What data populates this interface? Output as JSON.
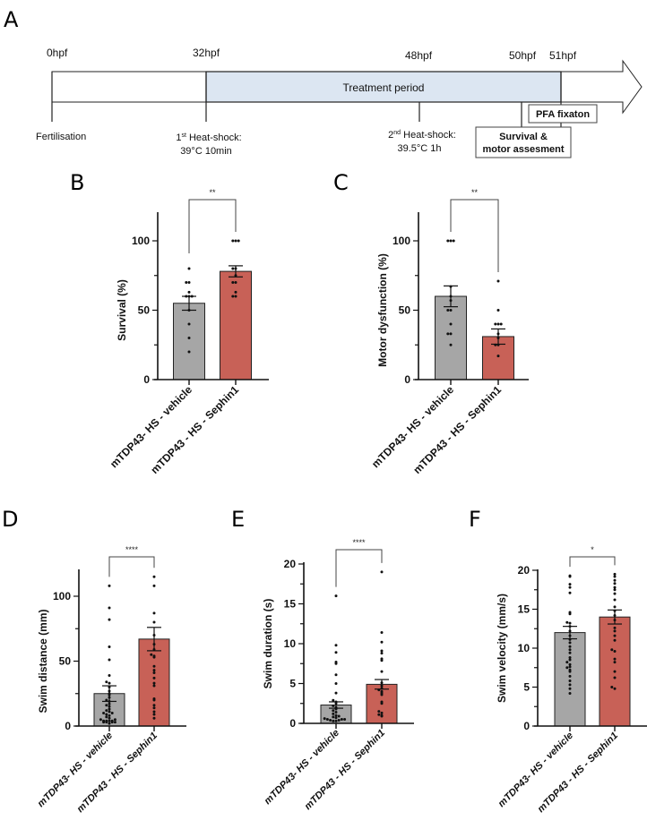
{
  "colors": {
    "vehicle": "#a6a6a6",
    "sephin": "#c86157",
    "treatment": "#dce6f2",
    "axis": "#111111"
  },
  "timeline": {
    "letter": "A",
    "times": [
      "0hpf",
      "32hpf",
      "48hpf",
      "50hpf",
      "51hpf"
    ],
    "treatment_label": "Treatment period",
    "fertilisation": "Fertilisation",
    "hs1_pre": "1",
    "hs1_sup": "st",
    "hs1_post": " Heat-shock:",
    "hs1_cond": "39°C 10min",
    "hs2_pre": "2",
    "hs2_sup": "nd",
    "hs2_post": " Heat-shock:",
    "hs2_cond": "39.5°C 1h",
    "pfa": "PFA fixaton",
    "survival_line1": "Survival &",
    "survival_line2": "motor assesment"
  },
  "chart_data": [
    {
      "panel": "B",
      "type": "bar",
      "ylabel": "Survival (%)",
      "ylim": [
        0,
        120
      ],
      "yticks": [
        0,
        50,
        100
      ],
      "categories": [
        "mTDP43- HS - vehicle",
        "mTDP43 - HS - Sephin1"
      ],
      "values": [
        55,
        78
      ],
      "sem": [
        5,
        4
      ],
      "points": [
        [
          20,
          30,
          40,
          50,
          60,
          60,
          60,
          63,
          70,
          70,
          80
        ],
        [
          60,
          60,
          63,
          70,
          70,
          75,
          80,
          80,
          100,
          100,
          100
        ]
      ],
      "significance": "**"
    },
    {
      "panel": "C",
      "type": "bar",
      "ylabel": "Motor dysfunction (%)",
      "ylim": [
        0,
        120
      ],
      "yticks": [
        0,
        50,
        100
      ],
      "categories": [
        "mTDP43- HS - vehicle",
        "mTDP43 - HS - Sephin1"
      ],
      "values": [
        60,
        31
      ],
      "sem": [
        7.5,
        5.5
      ],
      "points": [
        [
          25,
          33,
          33,
          40,
          50,
          50,
          57,
          60,
          67,
          100,
          100,
          100
        ],
        [
          17,
          25,
          25,
          30,
          33,
          40,
          40,
          40,
          50,
          71
        ]
      ],
      "significance": "**"
    },
    {
      "panel": "D",
      "type": "bar",
      "ylabel": "Swim distance (mm)",
      "ylim": [
        0,
        120
      ],
      "yticks": [
        0,
        50,
        100
      ],
      "categories": [
        "mTDP43- HS - vehicle",
        "mTDP43 - HS - Sephin1"
      ],
      "values": [
        25,
        67
      ],
      "sem": [
        6,
        9
      ],
      "points": [
        [
          2,
          3,
          3,
          3,
          3,
          4,
          4,
          4,
          4,
          5,
          5,
          6,
          7,
          8,
          9,
          10,
          10,
          11,
          12,
          13,
          15,
          16,
          17,
          19,
          20,
          22,
          24,
          25,
          27,
          30,
          33,
          34,
          39,
          51,
          61,
          82,
          91,
          108
        ],
        [
          6,
          9,
          11,
          14,
          16,
          20,
          21,
          31,
          33,
          37,
          41,
          43,
          46,
          53,
          54,
          55,
          59,
          63,
          70,
          80,
          87,
          108,
          115
        ]
      ],
      "significance": "****"
    },
    {
      "panel": "E",
      "type": "bar",
      "ylabel": "Swim duration (s)",
      "ylim": [
        0,
        20
      ],
      "yticks": [
        0,
        5,
        10,
        15,
        20
      ],
      "categories": [
        "mTDP43- HS - vehicle",
        "mTDP43 - HS - Sephin1"
      ],
      "values": [
        2.3,
        4.9
      ],
      "sem": [
        0.4,
        0.6
      ],
      "points": [
        [
          0.3,
          0.3,
          0.4,
          0.4,
          0.5,
          0.5,
          0.5,
          0.6,
          0.7,
          0.8,
          0.9,
          1.0,
          1.2,
          1.4,
          1.6,
          1.8,
          2.0,
          2.2,
          2.5,
          2.7,
          2.9,
          3.8,
          5.0,
          6.1,
          7.5,
          7.7,
          8.9,
          9.8,
          16.0
        ],
        [
          0.9,
          1.0,
          1.1,
          1.3,
          1.5,
          2.5,
          2.7,
          3.6,
          3.8,
          4.0,
          4.2,
          4.4,
          4.7,
          5.1,
          6.5,
          7.9,
          8.1,
          8.8,
          9.1,
          10.2,
          11.4,
          19.0
        ]
      ],
      "significance": "****"
    },
    {
      "panel": "F",
      "type": "bar",
      "ylabel": "Swim velocity (mm/s)",
      "ylim": [
        0,
        20
      ],
      "yticks": [
        0,
        5,
        10,
        15,
        20
      ],
      "categories": [
        "mTDP43- HS - vehicle",
        "mTDP43 - HS - Sephin1"
      ],
      "values": [
        12,
        14
      ],
      "sem": [
        0.8,
        0.9
      ],
      "points": [
        [
          4.2,
          4.8,
          5.3,
          5.8,
          6.4,
          7.0,
          7.2,
          7.5,
          7.6,
          7.9,
          8.2,
          8.5,
          8.8,
          9.4,
          9.8,
          10.2,
          10.7,
          11.1,
          11.6,
          12.2,
          12.8,
          13.2,
          13.3,
          14.4,
          14.6,
          17.1,
          17.8,
          18.2,
          19.2,
          19.3
        ],
        [
          4.8,
          5.0,
          6.2,
          7.0,
          8.2,
          8.6,
          9.6,
          9.8,
          11.0,
          11.6,
          12.2,
          12.6,
          13.6,
          14.2,
          14.8,
          15.3,
          16.2,
          17.0,
          17.5,
          17.8,
          18.3,
          18.7,
          19.2,
          19.5
        ]
      ],
      "significance": "*"
    }
  ]
}
